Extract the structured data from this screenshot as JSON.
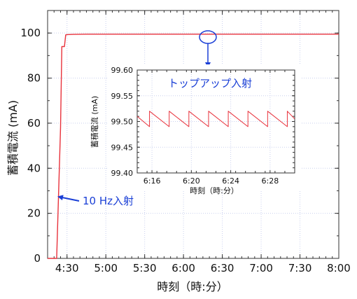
{
  "chart_data": [
    {
      "type": "line",
      "title": "",
      "xlabel": "時刻（時:分）",
      "ylabel": "蓄積電流 (mA)",
      "xlim": [
        "4:15",
        "8:00"
      ],
      "ylim": [
        0,
        110
      ],
      "x_ticks": [
        "4:30",
        "5:00",
        "5:30",
        "6:00",
        "6:30",
        "7:00",
        "7:30",
        "8:00"
      ],
      "y_ticks": [
        0,
        20,
        40,
        60,
        80,
        100
      ],
      "grid": true,
      "series": [
        {
          "color": "#e8323c",
          "x": [
            "4:15",
            "4:16",
            "4:22",
            "4:25",
            "4:26",
            "4:27",
            "4:28",
            "4:29",
            "4:30",
            "4:35",
            "4:45",
            "5:00",
            "6:00",
            "7:00",
            "8:00"
          ],
          "y": [
            0,
            0,
            0,
            58,
            94,
            94,
            94,
            99.2,
            99.3,
            99.4,
            99.5,
            99.5,
            99.5,
            99.5,
            99.5
          ]
        }
      ],
      "annotations": [
        {
          "text": "10 Hz入射",
          "points_to": {
            "x": "4:27",
            "y": 28
          }
        }
      ]
    },
    {
      "type": "line",
      "title": "トップアップ入射",
      "xlabel": "時刻（時:分）",
      "ylabel": "蓄積電流 (mA)",
      "xlim": [
        "6:14:30",
        "6:30:30"
      ],
      "ylim": [
        99.4,
        99.6
      ],
      "x_ticks": [
        "6:16",
        "6:20",
        "6:24",
        "6:28"
      ],
      "y_ticks": [
        "99.40",
        "99.45",
        "99.50",
        "99.55",
        "99.60"
      ],
      "grid": true,
      "series": [
        {
          "color": "#e8323c",
          "pattern": "sawtooth",
          "x": [
            "6:14:30",
            "6:15:45",
            "6:15:45",
            "6:17:45",
            "6:17:45",
            "6:19:45",
            "6:19:45",
            "6:21:45",
            "6:21:45",
            "6:23:45",
            "6:23:45",
            "6:25:45",
            "6:25:45",
            "6:27:45",
            "6:27:45",
            "6:29:45",
            "6:29:45",
            "6:30:30"
          ],
          "y": [
            99.51,
            99.49,
            99.52,
            99.49,
            99.52,
            99.49,
            99.52,
            99.49,
            99.52,
            99.49,
            99.52,
            99.49,
            99.52,
            99.49,
            99.52,
            99.49,
            99.52,
            99.505
          ]
        }
      ]
    }
  ]
}
